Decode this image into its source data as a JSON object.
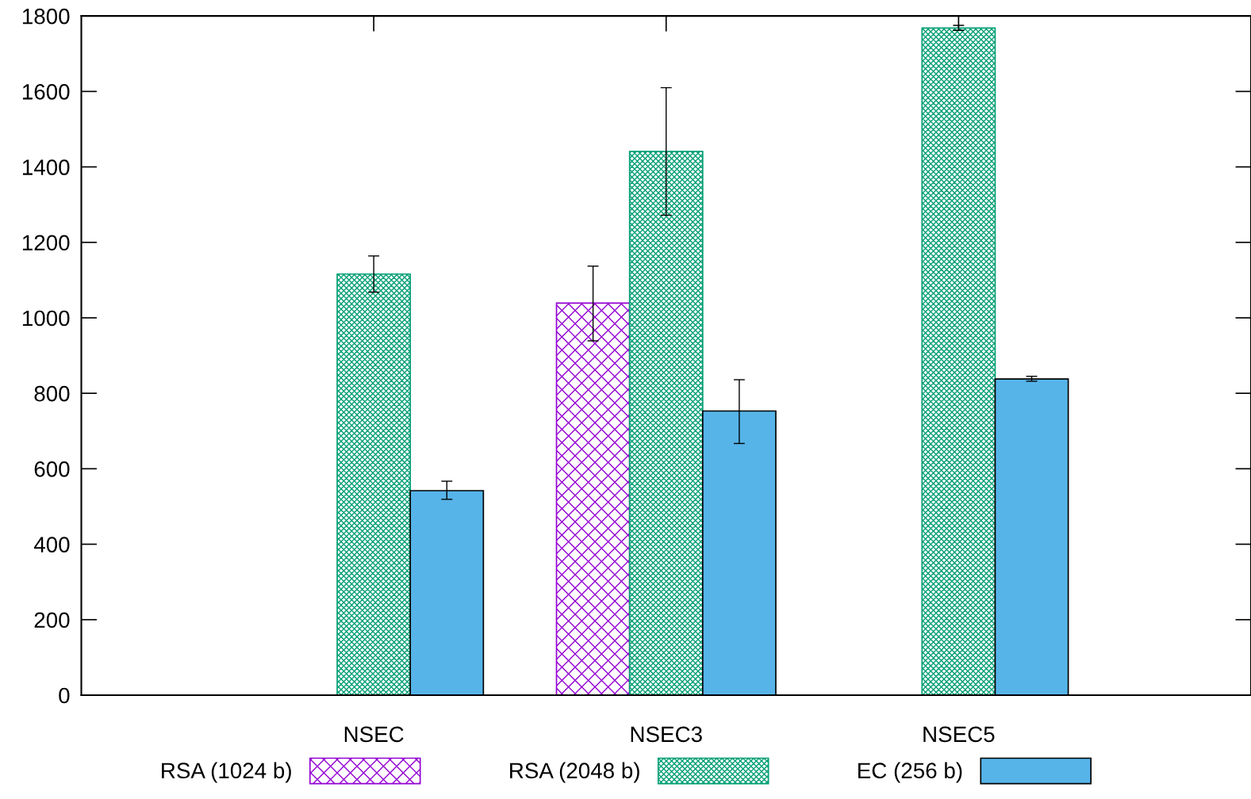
{
  "chart_data": {
    "type": "bar",
    "categories": [
      "NSEC",
      "NSEC3",
      "NSEC5"
    ],
    "series": [
      {
        "name": "RSA (1024 b)",
        "color": "#9400d3",
        "values": [
          null,
          1039,
          null
        ],
        "errors": [
          null,
          [
            939,
            1137
          ],
          null
        ]
      },
      {
        "name": "RSA (2048 b)",
        "color": "#009e73",
        "values": [
          1116,
          1441,
          1768
        ],
        "errors": [
          [
            1068,
            1164
          ],
          [
            1272,
            1610
          ],
          [
            1762,
            1775
          ]
        ]
      },
      {
        "name": "EC (256 b)",
        "color": "#56b4e9",
        "values": [
          542,
          753,
          838
        ],
        "errors": [
          [
            519,
            567
          ],
          [
            667,
            836
          ],
          [
            832,
            845
          ]
        ]
      }
    ],
    "ylim": [
      0,
      1800
    ],
    "yticks": [
      0,
      200,
      400,
      600,
      800,
      1000,
      1200,
      1400,
      1600,
      1800
    ],
    "grid": false,
    "legend": "bottom"
  }
}
